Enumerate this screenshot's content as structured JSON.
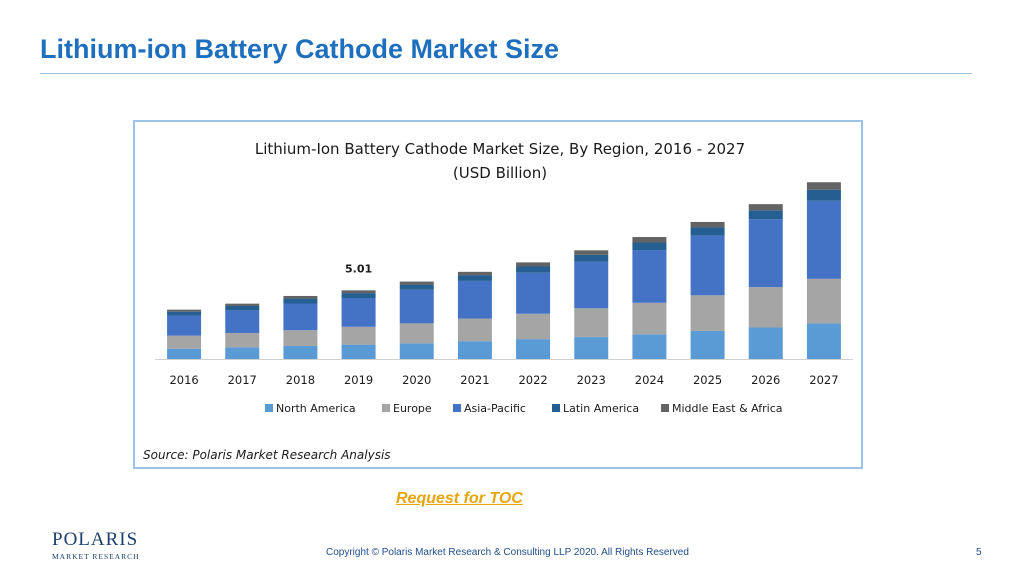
{
  "slide": {
    "title": "Lithium-ion Battery Cathode Market Size",
    "toc_link": "Request for TOC",
    "logo_top": "POLARIS",
    "logo_bottom": "MARKET RESEARCH",
    "copyright": "Copyright © Polaris Market Research & Consulting LLP 2020. All Rights Reserved",
    "page_number": "5",
    "title_color": "#1f6fbf",
    "link_color": "#e6a50a"
  },
  "chart_data": {
    "type": "bar",
    "stacked": true,
    "title": "Lithium-Ion Battery Cathode Market Size, By Region, 2016 - 2027",
    "subtitle": "(USD Billion)",
    "source": "Source: Polaris Market Research Analysis",
    "categories": [
      "2016",
      "2017",
      "2018",
      "2019",
      "2020",
      "2021",
      "2022",
      "2023",
      "2024",
      "2025",
      "2026",
      "2027"
    ],
    "annotation": {
      "category": "2019",
      "text": "5.01"
    },
    "ylim": [
      0,
      13.5
    ],
    "grid": false,
    "legend_position": "bottom",
    "series": [
      {
        "name": "North America",
        "color": "#5b9bd5",
        "values": [
          0.75,
          0.85,
          0.95,
          1.05,
          1.15,
          1.3,
          1.45,
          1.6,
          1.8,
          2.05,
          2.3,
          2.6
        ]
      },
      {
        "name": "Europe",
        "color": "#a5a5a5",
        "values": [
          0.95,
          1.05,
          1.15,
          1.3,
          1.45,
          1.65,
          1.85,
          2.1,
          2.3,
          2.6,
          2.95,
          3.25
        ]
      },
      {
        "name": "Asia-Pacific",
        "color": "#4472c4",
        "values": [
          1.45,
          1.65,
          1.95,
          2.1,
          2.45,
          2.75,
          3.0,
          3.4,
          3.85,
          4.35,
          4.95,
          5.7
        ]
      },
      {
        "name": "Latin America",
        "color": "#255e91",
        "values": [
          0.3,
          0.32,
          0.36,
          0.36,
          0.38,
          0.42,
          0.45,
          0.5,
          0.55,
          0.6,
          0.65,
          0.8
        ]
      },
      {
        "name": "Middle East & Africa",
        "color": "#636363",
        "values": [
          0.15,
          0.17,
          0.19,
          0.2,
          0.22,
          0.24,
          0.3,
          0.33,
          0.4,
          0.4,
          0.45,
          0.55
        ]
      }
    ]
  }
}
